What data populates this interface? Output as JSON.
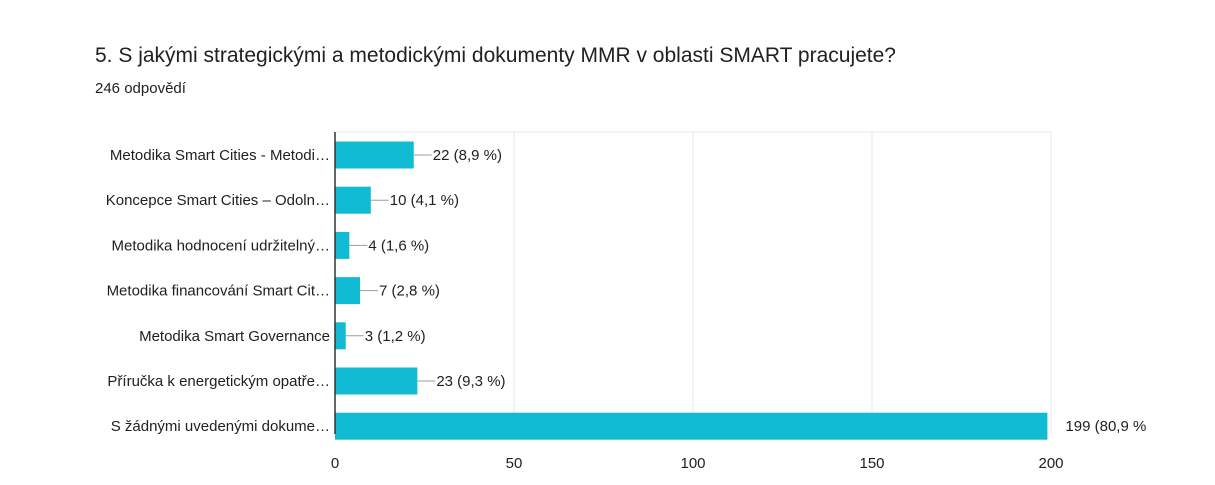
{
  "question": {
    "title": "5. S jakými strategickými a metodickými dokumenty MMR v oblasti SMART pracujete?",
    "responses": "246 odpovědí"
  },
  "colors": {
    "bar": "#12bbd4",
    "grid": "#e8e8e8",
    "axis": "#333333",
    "leader": "#9e9e9e"
  },
  "chart_data": {
    "type": "bar",
    "orientation": "horizontal",
    "categories": [
      "Metodika Smart Cities - Metodi…",
      "Koncepce Smart Cities – Odoln…",
      "Metodika hodnocení udržitelný…",
      "Metodika financování Smart Cit…",
      "Metodika Smart Governance",
      "Příručka k energetickým opatře…",
      "S žádnými uvedenými dokume…"
    ],
    "values": [
      22,
      10,
      4,
      7,
      3,
      23,
      199
    ],
    "value_labels": [
      "22 (8,9 %)",
      "10 (4,1 %)",
      "4 (1,6 %)",
      "7 (2,8 %)",
      "3 (1,2 %)",
      "23 (9,3 %)",
      "199 (80,9 %"
    ],
    "xlim": [
      0,
      200
    ],
    "ticks": [
      0,
      50,
      100,
      150,
      200
    ],
    "grid": true,
    "legend": "none"
  }
}
